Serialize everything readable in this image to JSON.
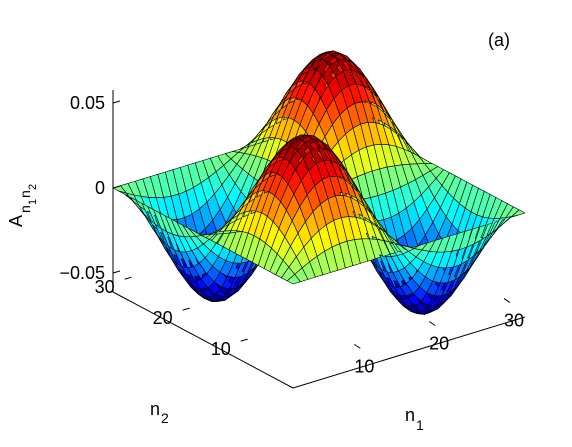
{
  "panel_label": "(a)",
  "chart_data": {
    "type": "surface",
    "z_label": {
      "main": "A",
      "sub1": "n",
      "sub2": "n",
      "subsub1": "1",
      "subsub2": "2"
    },
    "x_label": {
      "main": "n",
      "sub": "1"
    },
    "y_label": {
      "main": "n",
      "sub": "2"
    },
    "x_ticks": [
      "10",
      "20",
      "30"
    ],
    "x_tick_values": [
      10,
      20,
      30
    ],
    "y_ticks": [
      "10",
      "20",
      "30"
    ],
    "y_tick_values": [
      10,
      20,
      30
    ],
    "z_ticks": [
      "0.05",
      "0",
      "−0.05"
    ],
    "z_tick_values": [
      0.05,
      0,
      -0.05
    ],
    "xlim": [
      1,
      32
    ],
    "ylim": [
      1,
      32
    ],
    "zlim": [
      -0.05,
      0.05
    ],
    "grid_points": 32,
    "surface_formula": "z = 0.0625 * sin(2*pi*(n1-1)/31) * sin(2*pi*(n2-1)/31)",
    "amplitude": 0.0625,
    "colormap": "jet"
  }
}
